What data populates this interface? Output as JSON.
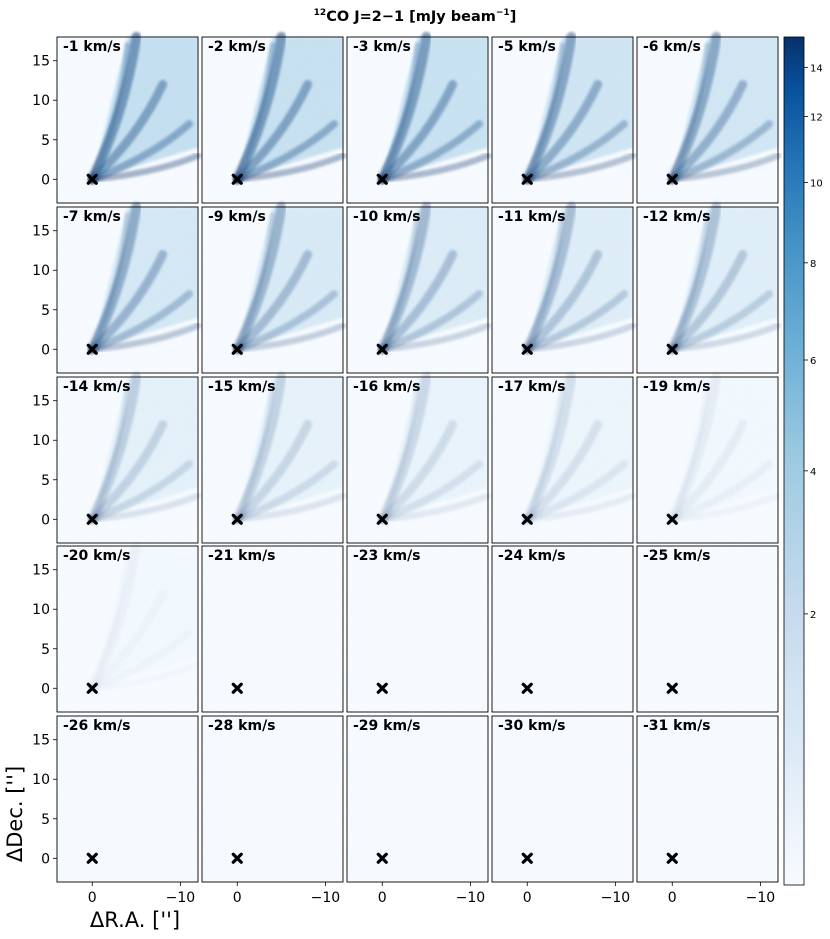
{
  "chart_data": {
    "type": "heatmap",
    "title": {
      "sup": "12",
      "main": "CO J=2−1 [mJy beam",
      "exp": "−1",
      "close": "]"
    },
    "xlabel": "ΔR.A. ['']",
    "ylabel": "ΔDec. ['']",
    "xlim": [
      4,
      -12
    ],
    "ylim": [
      -3,
      18
    ],
    "x_ticks": [
      {
        "value": 0,
        "label": "0"
      },
      {
        "value": -10,
        "label": "−10"
      }
    ],
    "y_ticks": [
      {
        "value": 0,
        "label": "0"
      },
      {
        "value": 5,
        "label": "5"
      },
      {
        "value": 10,
        "label": "10"
      },
      {
        "value": 15,
        "label": "15"
      }
    ],
    "grid": false,
    "source_marker": {
      "x": 0,
      "y": 0,
      "symbol": "x"
    },
    "colormap": "Blues",
    "colorbar": {
      "scale": "nonlinear",
      "range": [
        0,
        14.8
      ],
      "ticks": [
        {
          "value": 14,
          "label": "14",
          "frac": 0.0358
        },
        {
          "value": 12,
          "label": "12",
          "frac": 0.0938
        },
        {
          "value": 10,
          "label": "10",
          "frac": 0.1716
        },
        {
          "value": 8,
          "label": "8",
          "frac": 0.2663
        },
        {
          "value": 6,
          "label": "6",
          "frac": 0.3809
        },
        {
          "value": 4,
          "label": "4",
          "frac": 0.5116
        },
        {
          "value": 2,
          "label": "2",
          "frac": 0.6803
        }
      ]
    },
    "panels": [
      {
        "label": "-1 km/s",
        "velocity": -1
      },
      {
        "label": "-2 km/s",
        "velocity": -2
      },
      {
        "label": "-3 km/s",
        "velocity": -3
      },
      {
        "label": "-5 km/s",
        "velocity": -5
      },
      {
        "label": "-6 km/s",
        "velocity": -6
      },
      {
        "label": "-7 km/s",
        "velocity": -7
      },
      {
        "label": "-9 km/s",
        "velocity": -9
      },
      {
        "label": "-10 km/s",
        "velocity": -10
      },
      {
        "label": "-11 km/s",
        "velocity": -11
      },
      {
        "label": "-12 km/s",
        "velocity": -12
      },
      {
        "label": "-14 km/s",
        "velocity": -14
      },
      {
        "label": "-15 km/s",
        "velocity": -15
      },
      {
        "label": "-16 km/s",
        "velocity": -16
      },
      {
        "label": "-17 km/s",
        "velocity": -17
      },
      {
        "label": "-19 km/s",
        "velocity": -19
      },
      {
        "label": "-20 km/s",
        "velocity": -20
      },
      {
        "label": "-21 km/s",
        "velocity": -21
      },
      {
        "label": "-23 km/s",
        "velocity": -23
      },
      {
        "label": "-24 km/s",
        "velocity": -24
      },
      {
        "label": "-25 km/s",
        "velocity": -25
      },
      {
        "label": "-26 km/s",
        "velocity": -26
      },
      {
        "label": "-28 km/s",
        "velocity": -28
      },
      {
        "label": "-29 km/s",
        "velocity": -29
      },
      {
        "label": "-30 km/s",
        "velocity": -30
      },
      {
        "label": "-31 km/s",
        "velocity": -31
      }
    ],
    "colors": {
      "low": "#f7fbff",
      "mid": "#6baed6",
      "high": "#08306b",
      "marker": "#000000"
    }
  }
}
